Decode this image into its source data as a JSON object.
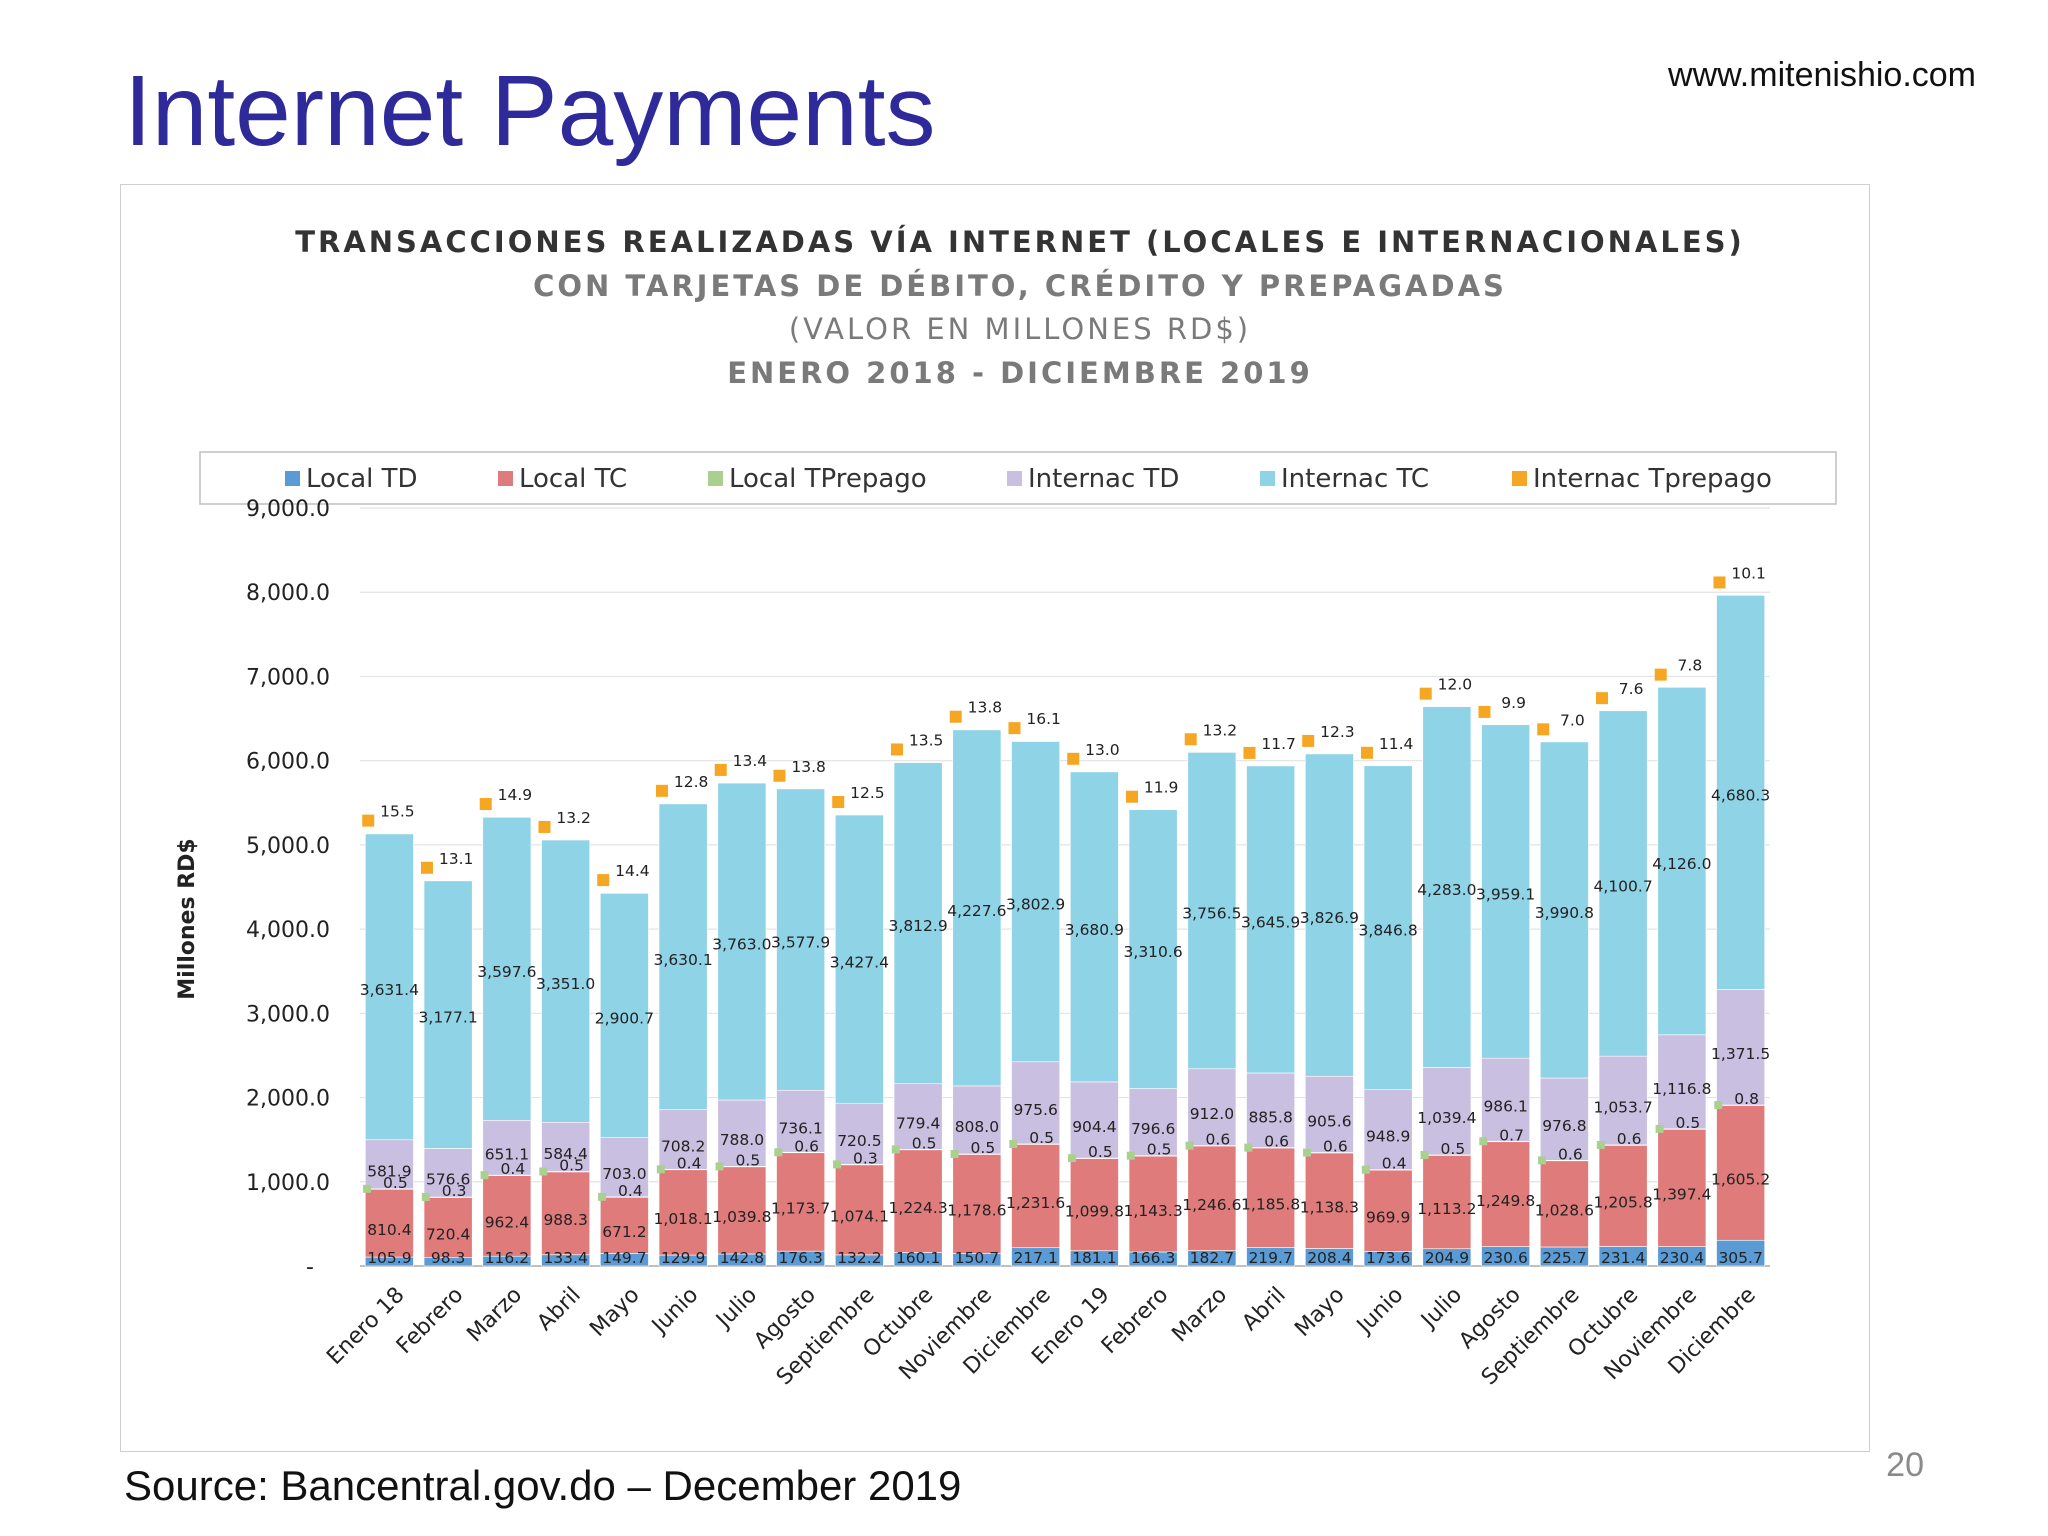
{
  "slide": {
    "title": "Internet Payments",
    "website": "www.mitenishio.com",
    "source": "Source:  Bancentral.gov.do –  December 2019",
    "page_number": "20"
  },
  "colors": {
    "title": "#2e2a9a",
    "local_td": "#5b9bd5",
    "local_tc": "#e07b7b",
    "local_tprepago": "#a9d08e",
    "internac_td": "#c9bfe0",
    "internac_tc": "#8fd3e6",
    "internac_tprepago": "#f5a623"
  },
  "chart_data": {
    "type": "bar",
    "stacked": true,
    "title": "TRANSACCIONES REALIZADAS VÍA INTERNET (LOCALES E INTERNACIONALES)",
    "subtitle_lines": [
      "CON TARJETAS DE DÉBITO, CRÉDITO Y PREPAGADAS",
      "(VALOR EN MILLONES RD$)",
      "ENERO 2018 - DICIEMBRE 2019"
    ],
    "ylabel": "Millones RD$",
    "xlabel": "",
    "ylim": [
      0,
      9000
    ],
    "yticks": [
      0,
      1000,
      2000,
      3000,
      4000,
      5000,
      6000,
      7000,
      8000,
      9000
    ],
    "ytick_labels": [
      "-",
      "1,000.0",
      "2,000.0",
      "3,000.0",
      "4,000.0",
      "5,000.0",
      "6,000.0",
      "7,000.0",
      "8,000.0",
      "9,000.0"
    ],
    "grid": true,
    "legend_position": "top",
    "categories": [
      "Enero 18",
      "Febrero",
      "Marzo",
      "Abril",
      "Mayo",
      "Junio",
      "Julio",
      "Agosto",
      "Septiembre",
      "Octubre",
      "Noviembre",
      "Diciembre",
      "Enero 19",
      "Febrero",
      "Marzo",
      "Abril",
      "Mayo",
      "Junio",
      "Julio",
      "Agosto",
      "Septiembre",
      "Octubre",
      "Noviembre",
      "Diciembre"
    ],
    "series": [
      {
        "name": "Local TD",
        "values": [
          105.9,
          98.3,
          116.2,
          133.4,
          149.7,
          129.9,
          142.8,
          176.3,
          132.2,
          160.1,
          150.7,
          217.1,
          181.1,
          166.3,
          182.7,
          219.7,
          208.4,
          173.6,
          204.9,
          230.6,
          225.7,
          231.4,
          230.4,
          305.7
        ],
        "labels": [
          "105.9",
          "98.3",
          "116.2",
          "133.4",
          "149.7",
          "129.9",
          "142.8",
          "176.3",
          "132.2",
          "160.1",
          "150.7",
          "217.1",
          "181.1",
          "166.3",
          "182.7",
          "219.7",
          "208.4",
          "173.6",
          "204.9",
          "230.6",
          "225.7",
          "231.4",
          "230.4",
          "305.7"
        ]
      },
      {
        "name": "Local TC",
        "values": [
          810.4,
          720.4,
          962.4,
          988.3,
          671.2,
          1018.1,
          1039.8,
          1173.7,
          1074.1,
          1224.3,
          1178.6,
          1231.6,
          1099.8,
          1143.3,
          1246.6,
          1185.8,
          1138.3,
          969.9,
          1113.2,
          1249.8,
          1028.6,
          1205.8,
          1397.4,
          1605.2
        ],
        "labels": [
          "810.4",
          "720.4",
          "962.4",
          "988.3",
          "671.2",
          "1,018.1",
          "1,039.8",
          "1,173.7",
          "1,074.1",
          "1,224.3",
          "1,178.6",
          "1,231.6",
          "1,099.8",
          "1,143.3",
          "1,246.6",
          "1,185.8",
          "1,138.3",
          "969.9",
          "1,113.2",
          "1,249.8",
          "1,028.6",
          "1,205.8",
          "1,397.4",
          "1,605.2"
        ]
      },
      {
        "name": "Local TPrepago",
        "values": [
          0.5,
          0.3,
          0.4,
          0.5,
          0.4,
          0.4,
          0.5,
          0.6,
          0.3,
          0.5,
          0.5,
          0.5,
          0.5,
          0.5,
          0.6,
          0.6,
          0.6,
          0.4,
          0.5,
          0.7,
          0.6,
          0.6,
          0.5,
          0.8
        ],
        "labels": [
          "0.5",
          "0.3",
          "0.4",
          "0.5",
          "0.4",
          "0.4",
          "0.5",
          "0.6",
          "0.3",
          "0.5",
          "0.5",
          "0.5",
          "0.5",
          "0.5",
          "0.6",
          "0.6",
          "0.6",
          "0.4",
          "0.5",
          "0.7",
          "0.6",
          "0.6",
          "0.5",
          "0.8"
        ]
      },
      {
        "name": "Internac TD",
        "values": [
          581.9,
          576.6,
          651.1,
          584.4,
          703.0,
          708.2,
          788.0,
          736.1,
          720.5,
          779.4,
          808.0,
          975.6,
          904.4,
          796.6,
          912.0,
          885.8,
          905.6,
          948.9,
          1039.4,
          986.1,
          976.8,
          1053.7,
          1116.8,
          1371.5
        ],
        "labels": [
          "581.9",
          "576.6",
          "651.1",
          "584.4",
          "703.0",
          "708.2",
          "788.0",
          "736.1",
          "720.5",
          "779.4",
          "808.0",
          "975.6",
          "904.4",
          "796.6",
          "912.0",
          "885.8",
          "905.6",
          "948.9",
          "1,039.4",
          "986.1",
          "976.8",
          "1,053.7",
          "1,116.8",
          "1,371.5"
        ]
      },
      {
        "name": "Internac TC",
        "values": [
          3631.4,
          3177.1,
          3597.6,
          3351.0,
          2900.7,
          3630.1,
          3763.0,
          3577.9,
          3427.4,
          3812.9,
          4227.6,
          3802.9,
          3680.9,
          3310.6,
          3756.5,
          3645.9,
          3826.9,
          3846.8,
          4283.0,
          3959.1,
          3990.8,
          4100.7,
          4126.0,
          4680.3
        ],
        "labels": [
          "3,631.4",
          "3,177.1",
          "3,597.6",
          "3,351.0",
          "2,900.7",
          "3,630.1",
          "3,763.0",
          "3,577.9",
          "3,427.4",
          "3,812.9",
          "4,227.6",
          "3,802.9",
          "3,680.9",
          "3,310.6",
          "3,756.5",
          "3,645.9",
          "3,826.9",
          "3,846.8",
          "4,283.0",
          "3,959.1",
          "3,990.8",
          "4,100.7",
          "4,126.0",
          "4,680.3"
        ]
      },
      {
        "name": "Internac Tprepago",
        "values": [
          15.5,
          13.1,
          14.9,
          13.2,
          14.4,
          12.8,
          13.4,
          13.8,
          12.5,
          13.5,
          13.8,
          16.1,
          13.0,
          11.9,
          13.2,
          11.7,
          12.3,
          11.4,
          12.0,
          9.9,
          7.0,
          7.6,
          7.8,
          10.1
        ],
        "labels": [
          "15.5",
          "13.1",
          "14.9",
          "13.2",
          "14.4",
          "12.8",
          "13.4",
          "13.8",
          "12.5",
          "13.5",
          "13.8",
          "16.1",
          "13.0",
          "11.9",
          "13.2",
          "11.7",
          "12.3",
          "11.4",
          "12.0",
          "9.9",
          "7.0",
          "7.6",
          "7.8",
          "10.1"
        ]
      }
    ]
  }
}
